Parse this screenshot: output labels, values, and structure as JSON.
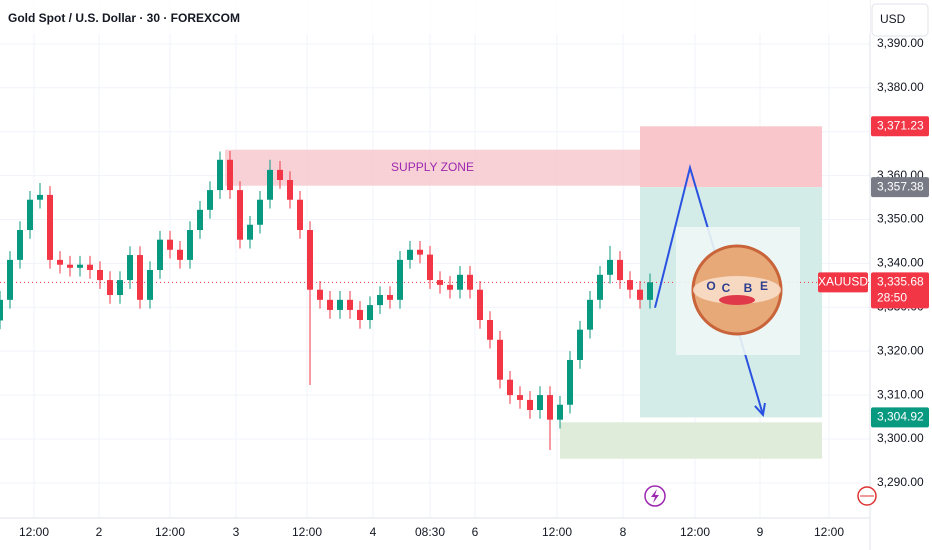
{
  "chart_data": {
    "type": "candlestick",
    "title": "Gold Spot / U.S. Dollar · 30 · FOREXCOM",
    "currency": "USD",
    "up_color": "#089981",
    "down_color": "#f23645",
    "xlim": [
      0,
      87
    ],
    "ylim": [
      3282,
      3400
    ],
    "xticks": [
      {
        "value": 3.4,
        "label": "12:00"
      },
      {
        "value": 9.9,
        "label": "2"
      },
      {
        "value": 17,
        "label": "12:00"
      },
      {
        "value": 23.6,
        "label": "3"
      },
      {
        "value": 30.7,
        "label": "12:00"
      },
      {
        "value": 37.3,
        "label": "4"
      },
      {
        "value": 43,
        "label": "08:30"
      },
      {
        "value": 47.5,
        "label": "6"
      },
      {
        "value": 55.7,
        "label": "12:00"
      },
      {
        "value": 62.3,
        "label": "8"
      },
      {
        "value": 69.5,
        "label": "12:00"
      },
      {
        "value": 76,
        "label": "9"
      },
      {
        "value": 82.9,
        "label": "12:00"
      }
    ],
    "yticks": [
      {
        "value": 3290,
        "label": "3,290.00"
      },
      {
        "value": 3300,
        "label": "3,300.00"
      },
      {
        "value": 3310,
        "label": "3,310.00"
      },
      {
        "value": 3320,
        "label": "3,320.00"
      },
      {
        "value": 3330,
        "label": "3,330.00"
      },
      {
        "value": 3340,
        "label": "3,340.00"
      },
      {
        "value": 3350,
        "label": "3,350.00"
      },
      {
        "value": 3360,
        "label": "3,360.00"
      },
      {
        "value": 3370,
        "label": "3,370.00"
      },
      {
        "value": 3380,
        "label": "3,380.00"
      },
      {
        "value": 3390,
        "label": "3,390.00"
      }
    ],
    "grid": true,
    "open": [
      3327.0,
      3331.7,
      3340.8,
      3347.6,
      3354.5,
      3355.6,
      3340.8,
      3339.7,
      3339.0,
      3339.7,
      3338.5,
      3336.2,
      3332.8,
      3336.2,
      3341.9,
      3331.7,
      3338.5,
      3345.4,
      3343.1,
      3340.8,
      3347.6,
      3352.2,
      3356.7,
      3363.6,
      3356.7,
      3345.4,
      3348.8,
      3354.5,
      3361.3,
      3359.0,
      3354.5,
      3347.6,
      3334.0,
      3331.7,
      3329.4,
      3331.7,
      3329.4,
      3327.1,
      3330.5,
      3332.8,
      3331.7,
      3340.8,
      3343.1,
      3342.0,
      3336.2,
      3335.1,
      3334.0,
      3337.4,
      3334.0,
      3327.1,
      3322.6,
      3313.5,
      3310.0,
      3308.9,
      3306.6,
      3310.0,
      3304.4,
      3307.8,
      3318.0,
      3324.9,
      3331.7,
      3337.4,
      3340.8,
      3336.2,
      3334.0,
      3331.7
    ],
    "high": [
      3333.7,
      3342.8,
      3349.6,
      3356.5,
      3358.3,
      3357.6,
      3342.8,
      3341.7,
      3341.7,
      3341.7,
      3340.5,
      3338.2,
      3338.2,
      3343.9,
      3343.9,
      3340.5,
      3347.4,
      3347.4,
      3345.1,
      3349.6,
      3354.2,
      3358.7,
      3365.5,
      3365.6,
      3358.7,
      3350.8,
      3356.5,
      3363.6,
      3363.3,
      3361.0,
      3356.5,
      3349.6,
      3336.0,
      3333.7,
      3333.7,
      3333.7,
      3331.4,
      3332.5,
      3334.8,
      3334.8,
      3342.8,
      3345.1,
      3345.1,
      3344.0,
      3338.2,
      3337.1,
      3339.4,
      3339.4,
      3336.0,
      3329.1,
      3324.6,
      3315.5,
      3312.0,
      3310.9,
      3312.0,
      3312.0,
      3309.8,
      3320.0,
      3326.9,
      3333.7,
      3339.4,
      3344.0,
      3342.8,
      3338.2,
      3336.0,
      3337.7
    ],
    "low": [
      3325.0,
      3329.7,
      3338.8,
      3345.6,
      3352.5,
      3338.8,
      3337.7,
      3337.0,
      3337.0,
      3336.5,
      3334.2,
      3330.8,
      3330.8,
      3334.2,
      3329.7,
      3329.7,
      3336.5,
      3341.1,
      3338.8,
      3338.8,
      3345.6,
      3350.2,
      3354.7,
      3354.7,
      3343.4,
      3343.4,
      3346.8,
      3352.5,
      3357.0,
      3352.5,
      3345.6,
      3312.3,
      3329.7,
      3327.4,
      3327.4,
      3327.4,
      3325.1,
      3325.1,
      3328.5,
      3329.7,
      3329.7,
      3338.8,
      3340.0,
      3334.2,
      3333.1,
      3332.0,
      3332.0,
      3332.0,
      3325.1,
      3320.6,
      3311.5,
      3308.0,
      3306.9,
      3304.6,
      3304.6,
      3297.5,
      3302.4,
      3305.8,
      3316.0,
      3322.9,
      3329.7,
      3335.4,
      3334.2,
      3332.0,
      3329.7,
      3329.7
    ],
    "close": [
      3331.7,
      3340.8,
      3347.6,
      3354.5,
      3355.6,
      3340.8,
      3339.7,
      3339.0,
      3339.7,
      3338.5,
      3336.2,
      3332.8,
      3336.2,
      3341.9,
      3331.7,
      3338.5,
      3345.4,
      3343.1,
      3340.8,
      3347.6,
      3352.2,
      3356.7,
      3363.6,
      3356.7,
      3345.4,
      3348.8,
      3354.5,
      3361.3,
      3359.0,
      3354.5,
      3347.6,
      3334.0,
      3331.7,
      3329.4,
      3331.7,
      3329.4,
      3327.1,
      3330.5,
      3332.8,
      3331.7,
      3340.8,
      3343.1,
      3342.0,
      3336.2,
      3335.1,
      3334.0,
      3337.4,
      3334.0,
      3327.1,
      3322.6,
      3313.5,
      3310.0,
      3308.9,
      3306.6,
      3310.0,
      3304.4,
      3307.8,
      3318.0,
      3324.9,
      3331.7,
      3337.4,
      3340.8,
      3336.2,
      3334.0,
      3331.7,
      3335.68
    ],
    "supply_zone": {
      "label": "SUPPLY ZONE",
      "x": [
        22.5,
        64
      ],
      "y": [
        3357.7,
        3365.9
      ],
      "color": "#f7c9cf"
    },
    "stop_zone": {
      "x": [
        64,
        82.2
      ],
      "y": [
        3357.38,
        3371.23
      ],
      "color": "#f8bcc3"
    },
    "profit_zone": {
      "x": [
        64,
        82.2
      ],
      "y": [
        3304.92,
        3357.38
      ],
      "color": "#cde9e4"
    },
    "demand_zone": {
      "x": [
        56,
        82.2
      ],
      "y": [
        3295.5,
        3303.8
      ],
      "color": "#dbe9d4"
    },
    "arrow": {
      "color": "#2a52e0",
      "x": [
        65.5,
        69,
        76.3
      ],
      "y": [
        3329.9,
        3361.8,
        3305.5
      ]
    },
    "price_labels": [
      {
        "value": 3371.23,
        "label": "3,371.23",
        "color": "#f23645"
      },
      {
        "value": 3357.38,
        "label": "3,357.38",
        "color": "#787b86"
      },
      {
        "value": 3304.92,
        "label": "3,304.92",
        "color": "#089981"
      }
    ],
    "last_price": {
      "symbol": "XAUUSD",
      "value": 3335.68,
      "label": "3,335.68",
      "countdown": "28:50",
      "color": "#f23645"
    },
    "logo": {
      "letters": [
        "O",
        "C",
        "B",
        "E"
      ]
    }
  }
}
